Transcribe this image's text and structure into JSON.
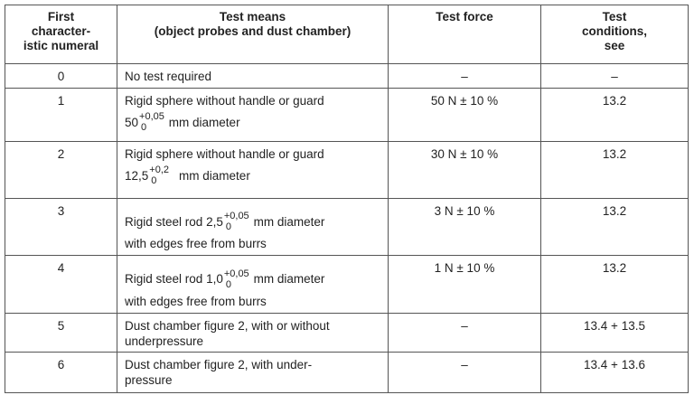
{
  "headers": [
    "First character-istic numeral",
    "Test means (object probes and dust chamber)",
    "Test force",
    "Test conditions, see"
  ],
  "header_lines": [
    [
      "First",
      "character-",
      "istic numeral"
    ],
    [
      "Test means",
      "(object probes and dust chamber)"
    ],
    [
      "Test force"
    ],
    [
      "Test",
      "conditions,",
      "see"
    ]
  ],
  "rows": [
    {
      "numeral": "0",
      "means": "No test required",
      "force": "–",
      "conditions": "–"
    },
    {
      "numeral": "1",
      "means_line1": "Rigid sphere without handle or guard",
      "size": "50",
      "tol_upper": "+0,05",
      "tol_lower": "0",
      "means_line2": "mm diameter",
      "force": "50 N ± 10 %",
      "conditions": "13.2"
    },
    {
      "numeral": "2",
      "means_line1": "Rigid sphere without handle or guard",
      "size": "12,5",
      "tol_upper": "+0,2",
      "tol_lower": "0",
      "means_line2": "mm diameter",
      "force": "30 N ± 10 %",
      "conditions": "13.2"
    },
    {
      "numeral": "3",
      "means_prefix": "Rigid steel rod",
      "size": "2,5",
      "tol_upper": "+0,05",
      "tol_lower": "0",
      "means_suffix": "mm diameter",
      "means_line2": "with edges free from burrs",
      "force": "3 N ± 10 %",
      "conditions": "13.2"
    },
    {
      "numeral": "4",
      "means_prefix": "Rigid steel rod",
      "size": "1,0",
      "tol_upper": "+0,05",
      "tol_lower": "0",
      "means_suffix": "mm diameter",
      "means_line2": "with edges free from burrs",
      "force": "1 N ± 10 %",
      "conditions": "13.2"
    },
    {
      "numeral": "5",
      "means_line1": "Dust chamber figure 2, with or without",
      "means_line2": "underpressure",
      "force": "–",
      "conditions": "13.4 + 13.5"
    },
    {
      "numeral": "6",
      "means_line1": "Dust chamber figure 2, with under-",
      "means_line2": "pressure",
      "force": "–",
      "conditions": "13.4 + 13.6"
    }
  ]
}
